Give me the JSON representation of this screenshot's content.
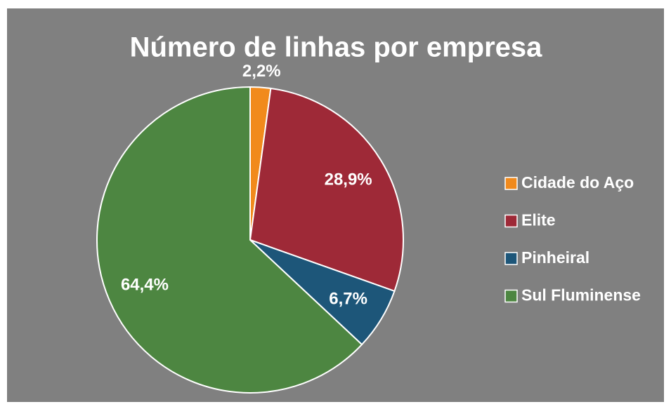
{
  "chart_data": {
    "type": "pie",
    "title": "Número de linhas por empresa",
    "categories": [
      "Cidade do Aço",
      "Elite",
      "Pinheiral",
      "Sul Fluminense"
    ],
    "values": [
      2.2,
      28.9,
      6.7,
      64.4
    ],
    "value_labels": [
      "2,2%",
      "28,9%",
      "6,7%",
      "64,4%"
    ],
    "colors": [
      "#f18a1c",
      "#9e2937",
      "#1d5679",
      "#4d8641"
    ],
    "legend": "right"
  }
}
